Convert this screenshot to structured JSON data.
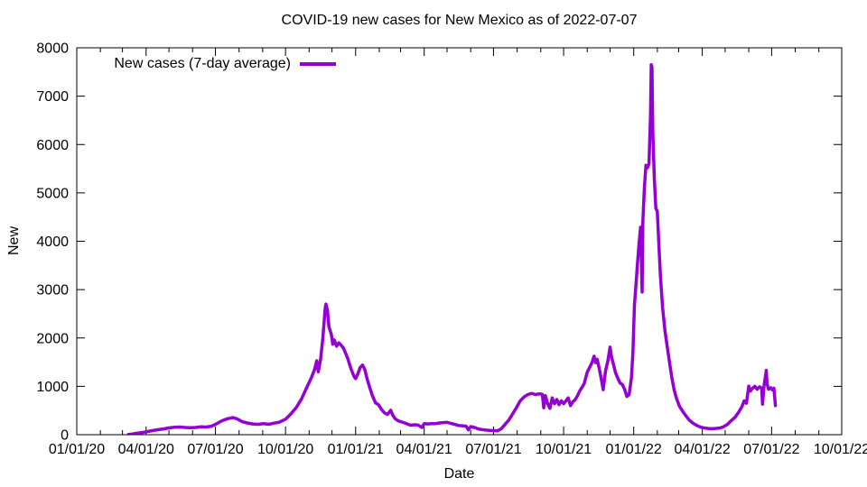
{
  "chart_data": {
    "type": "line",
    "title": "COVID-19 new cases for New Mexico as of 2022-07-07",
    "xlabel": "Date",
    "ylabel": "New",
    "grid": false,
    "legend_position": "top-left-inside",
    "background_color": "#ffffff",
    "axis_color": "#000000",
    "ylim": [
      0,
      8000
    ],
    "y_ticks": [
      0,
      1000,
      2000,
      3000,
      4000,
      5000,
      6000,
      7000,
      8000
    ],
    "x_range": [
      "2020-01-01",
      "2022-10-01"
    ],
    "x_ticks": [
      {
        "label": "01/01/20",
        "date": "2020-01-01"
      },
      {
        "label": "04/01/20",
        "date": "2020-04-01"
      },
      {
        "label": "07/01/20",
        "date": "2020-07-01"
      },
      {
        "label": "10/01/20",
        "date": "2020-10-01"
      },
      {
        "label": "01/01/21",
        "date": "2021-01-01"
      },
      {
        "label": "04/01/21",
        "date": "2021-04-01"
      },
      {
        "label": "07/01/21",
        "date": "2021-07-01"
      },
      {
        "label": "10/01/21",
        "date": "2021-10-01"
      },
      {
        "label": "01/01/22",
        "date": "2022-01-01"
      },
      {
        "label": "04/01/22",
        "date": "2022-04-01"
      },
      {
        "label": "07/01/22",
        "date": "2022-07-01"
      },
      {
        "label": "10/01/22",
        "date": "2022-10-01"
      }
    ],
    "x_minor_tick_interval": "month",
    "series": [
      {
        "name": "New cases (7-day average)",
        "color": "#9400d3",
        "points": [
          [
            "2020-03-09",
            5
          ],
          [
            "2020-03-14",
            15
          ],
          [
            "2020-03-20",
            30
          ],
          [
            "2020-03-27",
            45
          ],
          [
            "2020-04-03",
            65
          ],
          [
            "2020-04-10",
            85
          ],
          [
            "2020-04-17",
            105
          ],
          [
            "2020-04-24",
            120
          ],
          [
            "2020-05-01",
            140
          ],
          [
            "2020-05-08",
            152
          ],
          [
            "2020-05-15",
            158
          ],
          [
            "2020-05-22",
            150
          ],
          [
            "2020-05-29",
            143
          ],
          [
            "2020-06-05",
            150
          ],
          [
            "2020-06-12",
            163
          ],
          [
            "2020-06-19",
            158
          ],
          [
            "2020-06-26",
            175
          ],
          [
            "2020-07-03",
            230
          ],
          [
            "2020-07-10",
            290
          ],
          [
            "2020-07-17",
            330
          ],
          [
            "2020-07-24",
            355
          ],
          [
            "2020-07-29",
            330
          ],
          [
            "2020-08-05",
            270
          ],
          [
            "2020-08-12",
            240
          ],
          [
            "2020-08-19",
            222
          ],
          [
            "2020-08-26",
            215
          ],
          [
            "2020-09-02",
            228
          ],
          [
            "2020-09-09",
            215
          ],
          [
            "2020-09-16",
            238
          ],
          [
            "2020-09-23",
            260
          ],
          [
            "2020-10-01",
            320
          ],
          [
            "2020-10-08",
            430
          ],
          [
            "2020-10-15",
            560
          ],
          [
            "2020-10-22",
            740
          ],
          [
            "2020-10-29",
            980
          ],
          [
            "2020-11-04",
            1180
          ],
          [
            "2020-11-08",
            1340
          ],
          [
            "2020-11-11",
            1530
          ],
          [
            "2020-11-13",
            1300
          ],
          [
            "2020-11-16",
            1560
          ],
          [
            "2020-11-19",
            2000
          ],
          [
            "2020-11-22",
            2600
          ],
          [
            "2020-11-23",
            2700
          ],
          [
            "2020-11-25",
            2570
          ],
          [
            "2020-11-27",
            2230
          ],
          [
            "2020-11-30",
            2080
          ],
          [
            "2020-12-02",
            1870
          ],
          [
            "2020-12-04",
            1960
          ],
          [
            "2020-12-07",
            1830
          ],
          [
            "2020-12-10",
            1900
          ],
          [
            "2020-12-13",
            1850
          ],
          [
            "2020-12-16",
            1790
          ],
          [
            "2020-12-19",
            1680
          ],
          [
            "2020-12-22",
            1560
          ],
          [
            "2020-12-26",
            1360
          ],
          [
            "2020-12-30",
            1200
          ],
          [
            "2021-01-01",
            1160
          ],
          [
            "2021-01-04",
            1260
          ],
          [
            "2021-01-07",
            1390
          ],
          [
            "2021-01-10",
            1440
          ],
          [
            "2021-01-13",
            1350
          ],
          [
            "2021-01-16",
            1160
          ],
          [
            "2021-01-19",
            1000
          ],
          [
            "2021-01-23",
            810
          ],
          [
            "2021-01-27",
            660
          ],
          [
            "2021-01-31",
            620
          ],
          [
            "2021-02-04",
            520
          ],
          [
            "2021-02-08",
            450
          ],
          [
            "2021-02-12",
            420
          ],
          [
            "2021-02-16",
            505
          ],
          [
            "2021-02-19",
            395
          ],
          [
            "2021-02-22",
            330
          ],
          [
            "2021-02-26",
            285
          ],
          [
            "2021-03-04",
            255
          ],
          [
            "2021-03-09",
            225
          ],
          [
            "2021-03-14",
            196
          ],
          [
            "2021-03-19",
            205
          ],
          [
            "2021-03-24",
            200
          ],
          [
            "2021-03-29",
            150
          ],
          [
            "2021-04-01",
            230
          ],
          [
            "2021-04-06",
            222
          ],
          [
            "2021-04-11",
            228
          ],
          [
            "2021-04-16",
            230
          ],
          [
            "2021-04-21",
            242
          ],
          [
            "2021-04-26",
            250
          ],
          [
            "2021-05-01",
            255
          ],
          [
            "2021-05-06",
            235
          ],
          [
            "2021-05-11",
            215
          ],
          [
            "2021-05-16",
            190
          ],
          [
            "2021-05-21",
            185
          ],
          [
            "2021-05-26",
            175
          ],
          [
            "2021-05-29",
            100
          ],
          [
            "2021-06-01",
            168
          ],
          [
            "2021-06-06",
            150
          ],
          [
            "2021-06-11",
            120
          ],
          [
            "2021-06-16",
            105
          ],
          [
            "2021-06-21",
            95
          ],
          [
            "2021-06-26",
            90
          ],
          [
            "2021-07-01",
            85
          ],
          [
            "2021-07-06",
            78
          ],
          [
            "2021-07-11",
            120
          ],
          [
            "2021-07-16",
            210
          ],
          [
            "2021-07-21",
            300
          ],
          [
            "2021-07-26",
            430
          ],
          [
            "2021-07-31",
            560
          ],
          [
            "2021-08-05",
            700
          ],
          [
            "2021-08-10",
            780
          ],
          [
            "2021-08-15",
            830
          ],
          [
            "2021-08-20",
            855
          ],
          [
            "2021-08-25",
            830
          ],
          [
            "2021-08-30",
            845
          ],
          [
            "2021-09-03",
            835
          ],
          [
            "2021-09-05",
            555
          ],
          [
            "2021-09-07",
            810
          ],
          [
            "2021-09-10",
            640
          ],
          [
            "2021-09-13",
            545
          ],
          [
            "2021-09-16",
            760
          ],
          [
            "2021-09-19",
            640
          ],
          [
            "2021-09-22",
            730
          ],
          [
            "2021-09-25",
            620
          ],
          [
            "2021-09-28",
            700
          ],
          [
            "2021-10-01",
            640
          ],
          [
            "2021-10-04",
            700
          ],
          [
            "2021-10-07",
            760
          ],
          [
            "2021-10-10",
            600
          ],
          [
            "2021-10-13",
            680
          ],
          [
            "2021-10-16",
            720
          ],
          [
            "2021-10-19",
            800
          ],
          [
            "2021-10-22",
            900
          ],
          [
            "2021-10-25",
            975
          ],
          [
            "2021-10-28",
            1060
          ],
          [
            "2021-11-01",
            1290
          ],
          [
            "2021-11-04",
            1390
          ],
          [
            "2021-11-07",
            1480
          ],
          [
            "2021-11-10",
            1625
          ],
          [
            "2021-11-12",
            1490
          ],
          [
            "2021-11-14",
            1560
          ],
          [
            "2021-11-17",
            1350
          ],
          [
            "2021-11-20",
            1100
          ],
          [
            "2021-11-22",
            930
          ],
          [
            "2021-11-25",
            1320
          ],
          [
            "2021-11-28",
            1520
          ],
          [
            "2021-12-01",
            1810
          ],
          [
            "2021-12-03",
            1600
          ],
          [
            "2021-12-05",
            1480
          ],
          [
            "2021-12-08",
            1290
          ],
          [
            "2021-12-11",
            1170
          ],
          [
            "2021-12-14",
            1070
          ],
          [
            "2021-12-17",
            1040
          ],
          [
            "2021-12-20",
            940
          ],
          [
            "2021-12-23",
            790
          ],
          [
            "2021-12-26",
            830
          ],
          [
            "2021-12-29",
            1180
          ],
          [
            "2021-12-31",
            1700
          ],
          [
            "2022-01-02",
            2680
          ],
          [
            "2022-01-04",
            3100
          ],
          [
            "2022-01-06",
            3550
          ],
          [
            "2022-01-08",
            3950
          ],
          [
            "2022-01-10",
            4290
          ],
          [
            "2022-01-12",
            2950
          ],
          [
            "2022-01-13",
            4400
          ],
          [
            "2022-01-15",
            5100
          ],
          [
            "2022-01-17",
            5570
          ],
          [
            "2022-01-19",
            5520
          ],
          [
            "2022-01-21",
            5600
          ],
          [
            "2022-01-23",
            6600
          ],
          [
            "2022-01-24",
            7650
          ],
          [
            "2022-01-25",
            7600
          ],
          [
            "2022-01-26",
            6300
          ],
          [
            "2022-01-28",
            5300
          ],
          [
            "2022-01-30",
            4680
          ],
          [
            "2022-02-01",
            4620
          ],
          [
            "2022-02-03",
            3950
          ],
          [
            "2022-02-05",
            3300
          ],
          [
            "2022-02-08",
            2620
          ],
          [
            "2022-02-11",
            2150
          ],
          [
            "2022-02-14",
            1820
          ],
          [
            "2022-02-17",
            1500
          ],
          [
            "2022-02-20",
            1180
          ],
          [
            "2022-02-23",
            930
          ],
          [
            "2022-02-26",
            760
          ],
          [
            "2022-03-02",
            590
          ],
          [
            "2022-03-06",
            490
          ],
          [
            "2022-03-10",
            400
          ],
          [
            "2022-03-15",
            300
          ],
          [
            "2022-03-20",
            235
          ],
          [
            "2022-03-25",
            190
          ],
          [
            "2022-03-30",
            155
          ],
          [
            "2022-04-04",
            138
          ],
          [
            "2022-04-09",
            128
          ],
          [
            "2022-04-14",
            124
          ],
          [
            "2022-04-19",
            130
          ],
          [
            "2022-04-24",
            138
          ],
          [
            "2022-04-29",
            165
          ],
          [
            "2022-05-04",
            215
          ],
          [
            "2022-05-09",
            290
          ],
          [
            "2022-05-14",
            360
          ],
          [
            "2022-05-19",
            470
          ],
          [
            "2022-05-23",
            580
          ],
          [
            "2022-05-26",
            700
          ],
          [
            "2022-05-29",
            650
          ],
          [
            "2022-06-01",
            1005
          ],
          [
            "2022-06-03",
            900
          ],
          [
            "2022-06-06",
            960
          ],
          [
            "2022-06-09",
            1000
          ],
          [
            "2022-06-12",
            940
          ],
          [
            "2022-06-15",
            990
          ],
          [
            "2022-06-18",
            960
          ],
          [
            "2022-06-19",
            630
          ],
          [
            "2022-06-21",
            1010
          ],
          [
            "2022-06-24",
            1330
          ],
          [
            "2022-06-25",
            1050
          ],
          [
            "2022-06-27",
            940
          ],
          [
            "2022-06-30",
            970
          ],
          [
            "2022-07-02",
            930
          ],
          [
            "2022-07-04",
            960
          ],
          [
            "2022-07-06",
            600
          ]
        ]
      }
    ]
  }
}
